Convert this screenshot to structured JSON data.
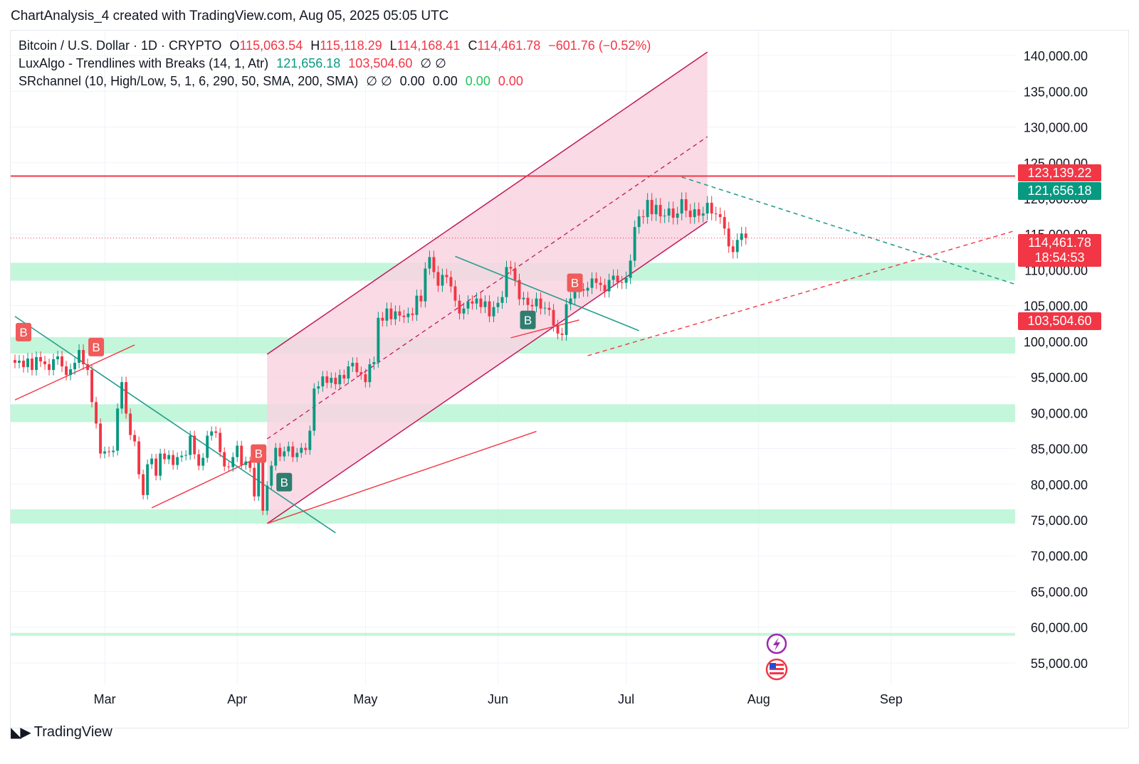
{
  "caption": "ChartAnalysis_4 created with TradingView.com, Aug 05, 2025 05:05 UTC",
  "legend": {
    "symbol": {
      "name": "Bitcoin / U.S. Dollar · 1D · CRYPTO",
      "o_label": "O",
      "o": "115,063.54",
      "h_label": "H",
      "h": "115,118.29",
      "l_label": "L",
      "l": "114,168.41",
      "c_label": "C",
      "c": "114,461.78",
      "change": "−601.76 (−0.52%)"
    },
    "indicator1": {
      "name": "LuxAlgo - Trendlines with Breaks (14, 1, Atr)",
      "v1": "121,656.18",
      "v2": "103,504.60",
      "icons": "∅ ∅"
    },
    "indicator2": {
      "name": "SRchannel (10, High/Low, 5, 1, 6, 290, 50, SMA, 200, SMA)",
      "icons": "∅ ∅",
      "v1": "0.00",
      "v2": "0.00",
      "v3": "0.00",
      "v4": "0.00"
    }
  },
  "price_tags": {
    "resistance": "123,139.22",
    "upper_trend": "121,656.18",
    "last_price": "114,461.78",
    "countdown": "18:54:53",
    "lower_trend": "103,504.60"
  },
  "footer": {
    "brand": "TradingView"
  },
  "colors": {
    "up": "#089981",
    "down": "#f23645",
    "channel_fill": "#f8d3e0",
    "channel_line": "#c2185b",
    "zone_fill": "#b9f5d4",
    "teal_line": "#2a9d8f",
    "red_line": "#f23645"
  },
  "chart_data": {
    "type": "candlestick",
    "title": "Bitcoin / U.S. Dollar · 1D · CRYPTO",
    "y_ticks": [
      140000,
      135000,
      130000,
      125000,
      120000,
      115000,
      110000,
      105000,
      100000,
      95000,
      90000,
      85000,
      80000,
      75000,
      70000,
      65000,
      60000,
      55000
    ],
    "y_tick_labels": [
      "140,000.00",
      "135,000.00",
      "130,000.00",
      "125,000.00",
      "120,000.00",
      "115,000.00",
      "110,000.00",
      "105,000.00",
      "100,000.00",
      "95,000.00",
      "90,000.00",
      "85,000.00",
      "80,000.00",
      "75,000.00",
      "70,000.00",
      "65,000.00",
      "60,000.00",
      "55,000.00"
    ],
    "ylim": [
      52000,
      143500
    ],
    "x_ticks": [
      {
        "label": "Mar",
        "date": "2025-03-01"
      },
      {
        "label": "Apr",
        "date": "2025-04-01"
      },
      {
        "label": "May",
        "date": "2025-05-01"
      },
      {
        "label": "Jun",
        "date": "2025-06-01"
      },
      {
        "label": "Jul",
        "date": "2025-07-01"
      },
      {
        "label": "Aug",
        "date": "2025-08-01"
      },
      {
        "label": "Sep",
        "date": "2025-09-01"
      }
    ],
    "xlim": [
      "2025-02-07",
      "2025-09-30"
    ],
    "candles_start": "2025-02-08",
    "closes": [
      97000,
      97300,
      96400,
      97600,
      96000,
      97800,
      97200,
      96800,
      96000,
      97500,
      97900,
      96500,
      95300,
      96100,
      97000,
      98800,
      96800,
      96000,
      91500,
      88500,
      84300,
      84600,
      84500,
      84700,
      90600,
      94300,
      89900,
      86900,
      86000,
      81400,
      78500,
      82800,
      83600,
      81200,
      84300,
      83500,
      84100,
      82700,
      83800,
      84000,
      84100,
      86800,
      84200,
      82600,
      83700,
      86800,
      87400,
      87200,
      84500,
      82500,
      82400,
      83800,
      85400,
      82700,
      83200,
      82300,
      78300,
      83200,
      76300,
      79800,
      82600,
      85100,
      83900,
      84600,
      85300,
      83800,
      84400,
      85100,
      84800,
      87500,
      93400,
      93700,
      95100,
      94200,
      94900,
      94000,
      95300,
      94800,
      96500,
      97000,
      95700,
      95400,
      94300,
      96800,
      97100,
      103300,
      102900,
      104600,
      103100,
      104200,
      103600,
      103400,
      103900,
      103700,
      106400,
      105600,
      110200,
      111800,
      109700,
      107800,
      109300,
      109000,
      107700,
      105700,
      103900,
      104600,
      105600,
      105300,
      106000,
      104800,
      105600,
      103500,
      104800,
      105400,
      106200,
      110400,
      110200,
      108600,
      105900,
      106100,
      105100,
      104900,
      106000,
      104600,
      104700,
      104400,
      102200,
      101100,
      100900,
      105200,
      106000,
      106900,
      107300,
      107100,
      107500,
      108800,
      108200,
      107900,
      107000,
      108600,
      109200,
      108300,
      108200,
      108900,
      111300,
      116000,
      117500,
      117400,
      119800,
      117800,
      119100,
      117500,
      117600,
      118600,
      117300,
      117900,
      119900,
      118300,
      117400,
      118500,
      117600,
      117900,
      119400,
      117900,
      117800,
      117400,
      115800,
      113300,
      112500,
      114200,
      115100,
      114460
    ],
    "resistance_level": 123139.22,
    "channel": {
      "lower": [
        [
          "2025-04-08",
          74500
        ],
        [
          "2025-07-20",
          116800
        ]
      ],
      "upper": [
        [
          "2025-04-08",
          98200
        ],
        [
          "2025-07-20",
          140500
        ]
      ]
    },
    "sr_zones": [
      [
        108500,
        111000
      ],
      [
        98300,
        100600
      ],
      [
        88700,
        91200
      ],
      [
        74500,
        76500
      ],
      [
        58800,
        59200
      ]
    ],
    "trendlines": {
      "teal": [
        [
          [
            "2025-02-08",
            103500
          ],
          [
            "2025-04-24",
            73200
          ]
        ],
        [
          [
            "2025-05-22",
            111900
          ],
          [
            "2025-07-04",
            101500
          ]
        ],
        [
          [
            "2025-07-14",
            123000
          ],
          [
            "2025-09-30",
            108000
          ]
        ]
      ],
      "red": [
        [
          [
            "2025-02-08",
            91800
          ],
          [
            "2025-03-08",
            99500
          ]
        ],
        [
          [
            "2025-03-12",
            76700
          ],
          [
            "2025-04-05",
            83500
          ]
        ],
        [
          [
            "2025-04-08",
            74500
          ],
          [
            "2025-06-10",
            87400
          ]
        ],
        [
          [
            "2025-06-04",
            100500
          ],
          [
            "2025-06-20",
            103000
          ]
        ],
        [
          [
            "2025-06-22",
            98000
          ],
          [
            "2025-09-30",
            115500
          ]
        ]
      ]
    },
    "signals": [
      {
        "date": "2025-02-10",
        "price": 101300,
        "type": "break-down",
        "text": "B"
      },
      {
        "date": "2025-02-27",
        "price": 99200,
        "type": "break-down",
        "text": "B"
      },
      {
        "date": "2025-04-06",
        "price": 84300,
        "type": "break-down",
        "text": "B"
      },
      {
        "date": "2025-04-12",
        "price": 80300,
        "type": "break-up",
        "text": "B"
      },
      {
        "date": "2025-06-08",
        "price": 103000,
        "type": "break-up",
        "text": "B"
      },
      {
        "date": "2025-06-19",
        "price": 108200,
        "type": "break-down",
        "text": "B"
      }
    ]
  }
}
